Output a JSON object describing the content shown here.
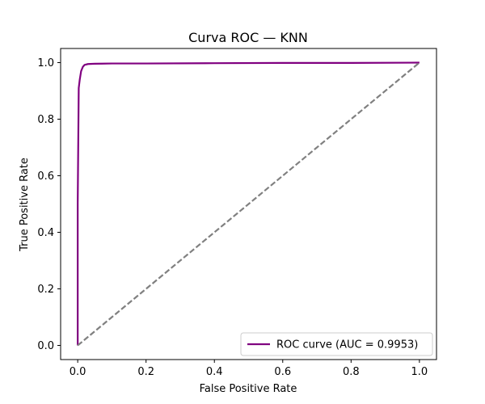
{
  "chart_data": {
    "type": "line",
    "title": "Curva ROC — KNN",
    "xlabel": "False Positive Rate",
    "ylabel": "True Positive Rate",
    "xlim": [
      -0.05,
      1.05
    ],
    "ylim": [
      -0.05,
      1.05
    ],
    "xticks": [
      "0.0",
      "0.2",
      "0.4",
      "0.6",
      "0.8",
      "1.0"
    ],
    "yticks": [
      "0.0",
      "0.2",
      "0.4",
      "0.6",
      "0.8",
      "1.0"
    ],
    "grid": false,
    "legend_position": "lower-right",
    "series": [
      {
        "name": "ROC curve (AUC = 0.9953)",
        "color": "#800080",
        "style": "solid",
        "x": [
          0.0,
          0.0,
          0.003,
          0.006,
          0.01,
          0.015,
          0.02,
          0.03,
          0.05,
          0.1,
          0.2,
          0.4,
          0.6,
          0.8,
          1.0
        ],
        "y": [
          0.0,
          0.5,
          0.91,
          0.94,
          0.97,
          0.985,
          0.992,
          0.995,
          0.996,
          0.997,
          0.997,
          0.998,
          0.999,
          0.999,
          1.0
        ]
      },
      {
        "color": "#808080",
        "style": "dashed",
        "x": [
          0.0,
          1.0
        ],
        "y": [
          0.0,
          1.0
        ]
      }
    ]
  }
}
